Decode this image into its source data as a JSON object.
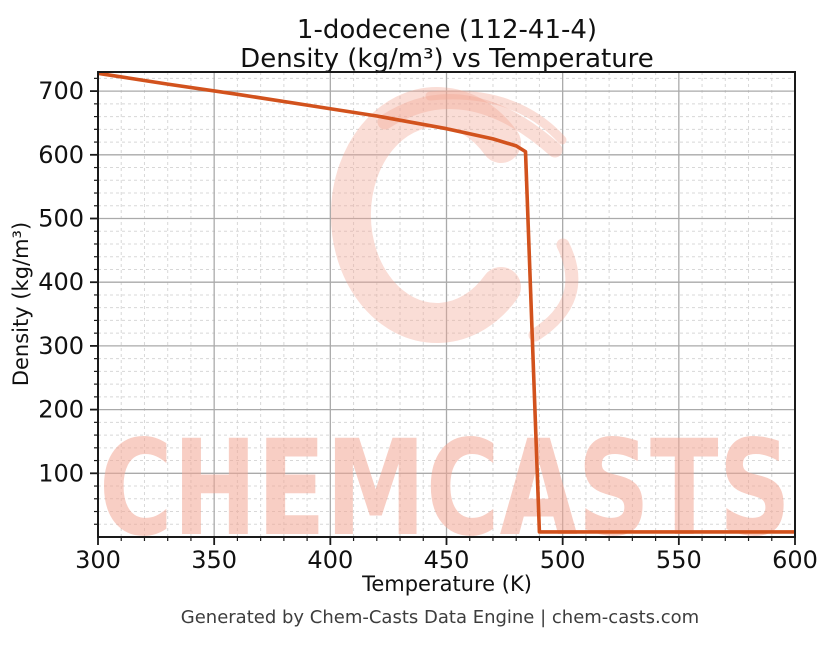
{
  "figure": {
    "title_line1": "1-dodecene (112-41-4)",
    "title_line2": "Density (kg/m³) vs Temperature",
    "footer": "Generated by Chem-Casts Data Engine | chem-casts.com",
    "watermark_text": "CHEMCASTS",
    "colors": {
      "line": "#d2521d",
      "major_grid": "#aaaaaa",
      "minor_grid": "#d8d8d8",
      "spine": "#1a1a1a",
      "watermark": "#f3a693",
      "footer_text": "#3d3d3d",
      "text": "#111111"
    }
  },
  "chart_data": {
    "type": "line",
    "title": "1-dodecene (112-41-4)",
    "subtitle": "Density (kg/m³) vs Temperature",
    "xlabel": "Temperature (K)",
    "ylabel": "Density (kg/m³)",
    "xlim": [
      300,
      600
    ],
    "ylim": [
      0,
      730
    ],
    "x_major_ticks": [
      300,
      350,
      400,
      450,
      500,
      550,
      600
    ],
    "y_major_ticks": [
      100,
      200,
      300,
      400,
      500,
      600,
      700
    ],
    "x_minor_step": 10,
    "y_minor_step": 20,
    "grid": "major solid + minor dashed",
    "legend": false,
    "series": [
      {
        "name": "Density",
        "units": "kg/m³",
        "color": "#d2521d",
        "points": [
          [
            300,
            728
          ],
          [
            330,
            711
          ],
          [
            360,
            695
          ],
          [
            390,
            678
          ],
          [
            420,
            661
          ],
          [
            450,
            641
          ],
          [
            470,
            625
          ],
          [
            480,
            614
          ],
          [
            484,
            605
          ],
          [
            490,
            8
          ],
          [
            600,
            8
          ]
        ],
        "note": "liquid density falls from 728 at 300 K to ~605 at ~484 K, drops to vapor ~8 at ~490 K, flat to 600 K"
      }
    ]
  }
}
